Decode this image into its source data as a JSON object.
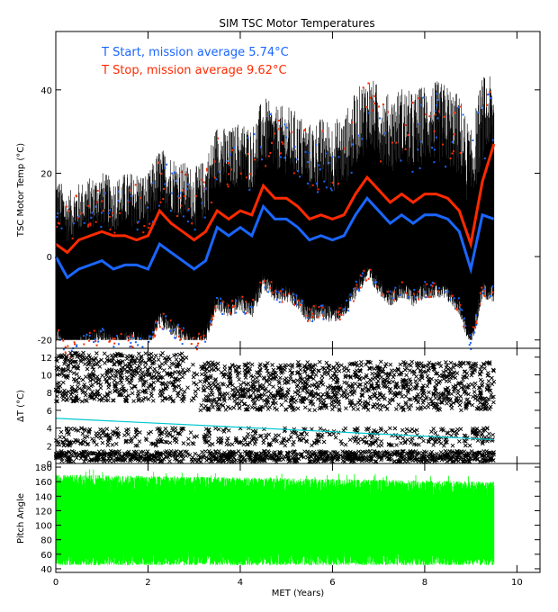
{
  "chart_data": [
    {
      "type": "line",
      "title": "SIM TSC Motor Temperatures",
      "xlabel": "",
      "ylabel": "TSC Motor Temp (°C)",
      "xlim": [
        0,
        10.5
      ],
      "ylim": [
        -22,
        54
      ],
      "x_ticks": [
        "0",
        "2",
        "4",
        "6",
        "8",
        "10"
      ],
      "y_ticks": [
        "-20",
        "0",
        "20",
        "40"
      ],
      "colors": {
        "start": "#1a66ff",
        "stop": "#ff2a00",
        "raw": "#000000"
      },
      "legend": [
        {
          "label": "T Start, mission average  5.74°C",
          "color": "#1a66ff"
        },
        {
          "label": "T Stop, mission average  9.62°C",
          "color": "#ff2a00"
        }
      ],
      "series": [
        {
          "name": "T Start, mission average  5.74°C",
          "x": [
            0.0,
            0.25,
            0.5,
            0.75,
            1.0,
            1.25,
            1.5,
            1.75,
            2.0,
            2.25,
            2.5,
            2.75,
            3.0,
            3.25,
            3.5,
            3.75,
            4.0,
            4.25,
            4.5,
            4.75,
            5.0,
            5.25,
            5.5,
            5.75,
            6.0,
            6.25,
            6.5,
            6.75,
            7.0,
            7.25,
            7.5,
            7.75,
            8.0,
            8.25,
            8.5,
            8.75,
            9.0,
            9.25,
            9.5
          ],
          "values": [
            0,
            -5,
            -3,
            -2,
            -1,
            -3,
            -2,
            -2,
            -3,
            3,
            1,
            -1,
            -3,
            -1,
            7,
            5,
            7,
            5,
            12,
            9,
            9,
            7,
            4,
            5,
            4,
            5,
            10,
            14,
            11,
            8,
            10,
            8,
            10,
            10,
            9,
            6,
            -3,
            10,
            9
          ]
        },
        {
          "name": "T Stop, mission average  9.62°C",
          "x": [
            0.0,
            0.25,
            0.5,
            0.75,
            1.0,
            1.25,
            1.5,
            1.75,
            2.0,
            2.25,
            2.5,
            2.75,
            3.0,
            3.25,
            3.5,
            3.75,
            4.0,
            4.25,
            4.5,
            4.75,
            5.0,
            5.25,
            5.5,
            5.75,
            6.0,
            6.25,
            6.5,
            6.75,
            7.0,
            7.25,
            7.5,
            7.75,
            8.0,
            8.25,
            8.5,
            8.75,
            9.0,
            9.25,
            9.5
          ],
          "values": [
            3,
            1,
            4,
            5,
            6,
            5,
            5,
            4,
            5,
            11,
            8,
            6,
            4,
            6,
            11,
            9,
            11,
            10,
            17,
            14,
            14,
            12,
            9,
            10,
            9,
            10,
            15,
            19,
            16,
            13,
            15,
            13,
            15,
            15,
            14,
            11,
            3,
            18,
            27
          ]
        }
      ]
    },
    {
      "type": "scatter",
      "title": "",
      "xlabel": "",
      "ylabel": "ΔT (°C)",
      "xlim": [
        0,
        10.5
      ],
      "ylim": [
        0,
        13
      ],
      "x_ticks": [
        "0",
        "2",
        "4",
        "6",
        "8",
        "10"
      ],
      "y_ticks": [
        "0",
        "2",
        "4",
        "6",
        "8",
        "10",
        "12"
      ],
      "colors": {
        "points": "#000000",
        "trend": "#00c8d0"
      },
      "series": [
        {
          "name": "",
          "x": [
            0,
            9.5
          ],
          "values": [
            5.1,
            2.7
          ]
        }
      ]
    },
    {
      "type": "area",
      "title": "",
      "xlabel": "MET (Years)",
      "ylabel": "Pitch Angle",
      "xlim": [
        0,
        10.5
      ],
      "ylim": [
        35,
        185
      ],
      "x_ticks": [
        "0",
        "2",
        "4",
        "6",
        "8",
        "10"
      ],
      "y_ticks": [
        "40",
        "60",
        "80",
        "100",
        "120",
        "140",
        "160",
        "180"
      ],
      "colors": {
        "fill": "#00ff00"
      },
      "series": [
        {
          "name": "",
          "x": [
            0,
            9.5
          ],
          "values_min": [
            45,
            45
          ],
          "values_max": [
            170,
            160
          ]
        }
      ]
    }
  ]
}
